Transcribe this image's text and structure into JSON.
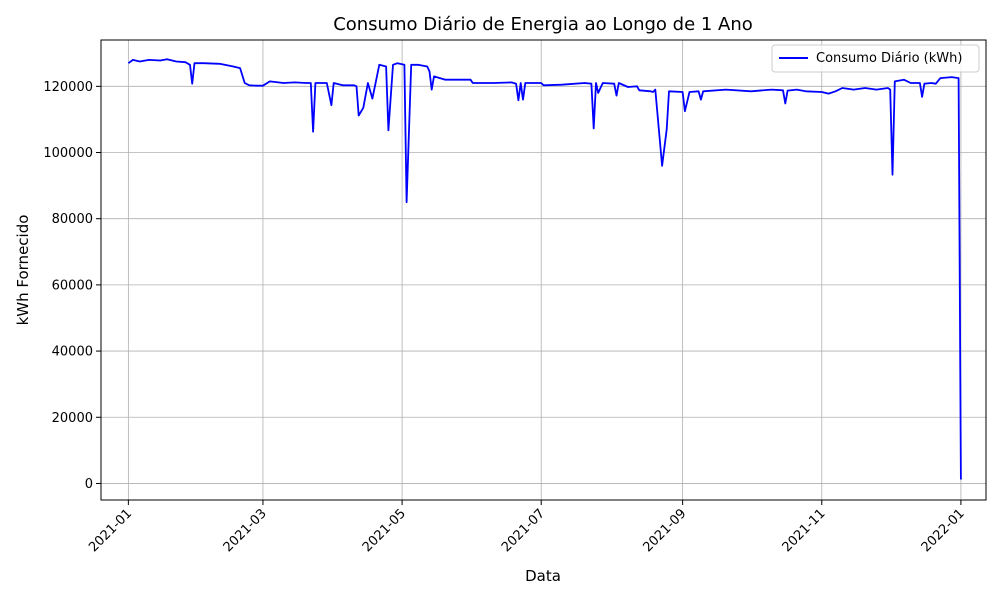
{
  "chart_data": {
    "type": "line",
    "title": "Consumo Diário de Energia ao Longo de 1 Ano",
    "xlabel": "Data",
    "ylabel": "kWh Fornecido",
    "xlim": [
      "2020-12-20",
      "2022-01-12"
    ],
    "ylim": [
      -5000,
      134000
    ],
    "grid": true,
    "legend_placement": "top-right",
    "x_ticks": [
      "2021-01",
      "2021-03",
      "2021-05",
      "2021-07",
      "2021-09",
      "2021-11",
      "2022-01"
    ],
    "y_ticks": [
      0,
      20000,
      40000,
      60000,
      80000,
      100000,
      120000
    ],
    "series": [
      {
        "name": "Consumo Diário (kWh)",
        "color": "#0000ff",
        "points": [
          [
            "2021-01-01",
            127000
          ],
          [
            "2021-01-03",
            128000
          ],
          [
            "2021-01-06",
            127500
          ],
          [
            "2021-01-10",
            128000
          ],
          [
            "2021-01-15",
            127800
          ],
          [
            "2021-01-18",
            128200
          ],
          [
            "2021-01-22",
            127500
          ],
          [
            "2021-01-26",
            127300
          ],
          [
            "2021-01-28",
            126500
          ],
          [
            "2021-01-29",
            120800
          ],
          [
            "2021-01-30",
            127000
          ],
          [
            "2021-02-03",
            127000
          ],
          [
            "2021-02-10",
            126800
          ],
          [
            "2021-02-16",
            126000
          ],
          [
            "2021-02-19",
            125500
          ],
          [
            "2021-02-21",
            121000
          ],
          [
            "2021-02-23",
            120300
          ],
          [
            "2021-02-26",
            120200
          ],
          [
            "2021-03-01",
            120200
          ],
          [
            "2021-03-04",
            121500
          ],
          [
            "2021-03-10",
            121000
          ],
          [
            "2021-03-15",
            121200
          ],
          [
            "2021-03-20",
            121000
          ],
          [
            "2021-03-22",
            121000
          ],
          [
            "2021-03-23",
            106300
          ],
          [
            "2021-03-24",
            121000
          ],
          [
            "2021-03-29",
            121000
          ],
          [
            "2021-03-31",
            114300
          ],
          [
            "2021-04-01",
            121000
          ],
          [
            "2021-04-05",
            120300
          ],
          [
            "2021-04-10",
            120300
          ],
          [
            "2021-04-11",
            120000
          ],
          [
            "2021-04-12",
            111200
          ],
          [
            "2021-04-14",
            113500
          ],
          [
            "2021-04-16",
            121000
          ],
          [
            "2021-04-18",
            116300
          ],
          [
            "2021-04-21",
            126500
          ],
          [
            "2021-04-24",
            126000
          ],
          [
            "2021-04-25",
            106700
          ],
          [
            "2021-04-27",
            126500
          ],
          [
            "2021-04-29",
            127000
          ],
          [
            "2021-05-02",
            126500
          ],
          [
            "2021-05-03",
            85000
          ],
          [
            "2021-05-05",
            126500
          ],
          [
            "2021-05-08",
            126500
          ],
          [
            "2021-05-12",
            126000
          ],
          [
            "2021-05-13",
            124500
          ],
          [
            "2021-05-14",
            119000
          ],
          [
            "2021-05-15",
            123000
          ],
          [
            "2021-05-20",
            122000
          ],
          [
            "2021-05-31",
            122000
          ],
          [
            "2021-06-01",
            121000
          ],
          [
            "2021-06-10",
            121000
          ],
          [
            "2021-06-18",
            121200
          ],
          [
            "2021-06-20",
            120800
          ],
          [
            "2021-06-21",
            115800
          ],
          [
            "2021-06-22",
            121000
          ],
          [
            "2021-06-23",
            116000
          ],
          [
            "2021-06-24",
            121000
          ],
          [
            "2021-07-01",
            121000
          ],
          [
            "2021-07-02",
            120300
          ],
          [
            "2021-07-10",
            120500
          ],
          [
            "2021-07-20",
            121000
          ],
          [
            "2021-07-23",
            120800
          ],
          [
            "2021-07-24",
            107300
          ],
          [
            "2021-07-25",
            121000
          ],
          [
            "2021-07-26",
            118000
          ],
          [
            "2021-07-28",
            121000
          ],
          [
            "2021-08-02",
            120800
          ],
          [
            "2021-08-03",
            117200
          ],
          [
            "2021-08-04",
            121000
          ],
          [
            "2021-08-08",
            119800
          ],
          [
            "2021-08-12",
            120000
          ],
          [
            "2021-08-13",
            118800
          ],
          [
            "2021-08-18",
            118500
          ],
          [
            "2021-08-19",
            118300
          ],
          [
            "2021-08-20",
            119000
          ],
          [
            "2021-08-23",
            96000
          ],
          [
            "2021-08-25",
            107000
          ],
          [
            "2021-08-26",
            118500
          ],
          [
            "2021-09-01",
            118300
          ],
          [
            "2021-09-02",
            112500
          ],
          [
            "2021-09-04",
            118300
          ],
          [
            "2021-09-08",
            118500
          ],
          [
            "2021-09-09",
            116000
          ],
          [
            "2021-09-10",
            118500
          ],
          [
            "2021-09-20",
            119000
          ],
          [
            "2021-10-01",
            118500
          ],
          [
            "2021-10-10",
            119000
          ],
          [
            "2021-10-15",
            118800
          ],
          [
            "2021-10-16",
            114800
          ],
          [
            "2021-10-17",
            118700
          ],
          [
            "2021-10-21",
            119000
          ],
          [
            "2021-10-25",
            118500
          ],
          [
            "2021-11-01",
            118300
          ],
          [
            "2021-11-04",
            117800
          ],
          [
            "2021-11-07",
            118500
          ],
          [
            "2021-11-10",
            119500
          ],
          [
            "2021-11-15",
            119000
          ],
          [
            "2021-11-20",
            119500
          ],
          [
            "2021-11-25",
            119000
          ],
          [
            "2021-11-30",
            119500
          ],
          [
            "2021-12-01",
            119000
          ],
          [
            "2021-12-02",
            93300
          ],
          [
            "2021-12-03",
            121500
          ],
          [
            "2021-12-07",
            122000
          ],
          [
            "2021-12-10",
            121000
          ],
          [
            "2021-12-14",
            121000
          ],
          [
            "2021-12-15",
            116800
          ],
          [
            "2021-12-16",
            120800
          ],
          [
            "2021-12-19",
            121000
          ],
          [
            "2021-12-21",
            120800
          ],
          [
            "2021-12-23",
            122500
          ],
          [
            "2021-12-28",
            122800
          ],
          [
            "2021-12-31",
            122500
          ],
          [
            "2022-01-01",
            1200
          ]
        ]
      }
    ]
  }
}
